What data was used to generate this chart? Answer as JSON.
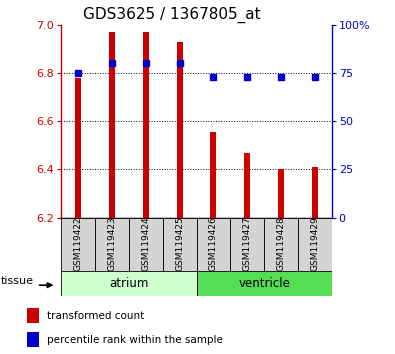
{
  "title": "GDS3625 / 1367805_at",
  "samples": [
    "GSM119422",
    "GSM119423",
    "GSM119424",
    "GSM119425",
    "GSM119426",
    "GSM119427",
    "GSM119428",
    "GSM119429"
  ],
  "red_values": [
    6.78,
    6.97,
    6.97,
    6.93,
    6.555,
    6.47,
    6.4,
    6.41
  ],
  "blue_values": [
    75,
    80,
    80,
    80,
    73,
    73,
    73,
    73
  ],
  "ylim_left": [
    6.2,
    7.0
  ],
  "ylim_right": [
    0,
    100
  ],
  "yticks_left": [
    6.2,
    6.4,
    6.6,
    6.8,
    7.0
  ],
  "yticks_right": [
    0,
    25,
    50,
    75,
    100
  ],
  "ytick_labels_right": [
    "0",
    "25",
    "50",
    "75",
    "100%"
  ],
  "groups": [
    {
      "label": "atrium",
      "start": 0,
      "end": 3,
      "color": "#ccffcc"
    },
    {
      "label": "ventricle",
      "start": 4,
      "end": 7,
      "color": "#55dd55"
    }
  ],
  "bar_color": "#cc0000",
  "dot_color": "#0000cc",
  "bar_bottom": 6.2,
  "left_axis_color": "#cc0000",
  "right_axis_color": "#0000cc",
  "legend_square_color_red": "#cc0000",
  "legend_square_color_blue": "#0000cc",
  "legend_text_red": "transformed count",
  "legend_text_blue": "percentile rank within the sample",
  "tissue_label": "tissue",
  "title_fontsize": 11,
  "tick_fontsize": 8,
  "bar_width": 0.18
}
